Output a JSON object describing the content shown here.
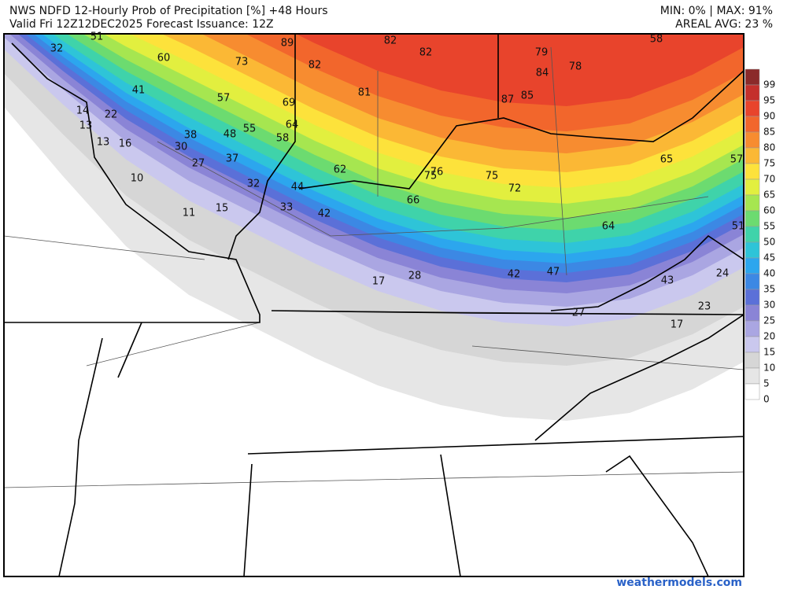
{
  "header": {
    "title": "NWS NDFD 12-Hourly Prob of Precipitation [%] +48 Hours",
    "valid": "Valid Fri 12Z12DEC2025  Forecast Issuance: 12Z",
    "minmax": "MIN: 0% | MAX: 91%",
    "areal": "AREAL AVG: 23 %"
  },
  "map_labels": [
    51,
    32,
    60,
    73,
    89,
    82,
    82,
    82,
    79,
    58,
    84,
    78,
    41,
    57,
    81,
    69,
    87,
    85,
    14,
    22,
    13,
    64,
    55,
    48,
    38,
    58,
    13,
    16,
    30,
    37,
    65,
    57,
    27,
    62,
    76,
    75,
    75,
    10,
    32,
    44,
    72,
    66,
    33,
    15,
    11,
    42,
    64,
    51,
    24,
    42,
    47,
    28,
    17,
    43,
    23,
    27,
    17
  ],
  "colorbar": [
    {
      "label": 99,
      "color": "#8b2a2a"
    },
    {
      "label": 95,
      "color": "#c4302c"
    },
    {
      "label": 90,
      "color": "#e8442c"
    },
    {
      "label": 85,
      "color": "#f2662c"
    },
    {
      "label": 80,
      "color": "#f78c30"
    },
    {
      "label": 75,
      "color": "#fbb835"
    },
    {
      "label": 70,
      "color": "#fde23b"
    },
    {
      "label": 65,
      "color": "#e2ef3f"
    },
    {
      "label": 60,
      "color": "#a6e650"
    },
    {
      "label": 55,
      "color": "#6cdb70"
    },
    {
      "label": 50,
      "color": "#3fd3aa"
    },
    {
      "label": 45,
      "color": "#2ec4d8"
    },
    {
      "label": 40,
      "color": "#2ca6ee"
    },
    {
      "label": 35,
      "color": "#3c88e4"
    },
    {
      "label": 30,
      "color": "#5b70d8"
    },
    {
      "label": 25,
      "color": "#8a84d6"
    },
    {
      "label": 20,
      "color": "#aaa6e2"
    },
    {
      "label": 15,
      "color": "#cac8ee"
    },
    {
      "label": 10,
      "color": "#d6d6d6"
    },
    {
      "label": 5,
      "color": "#e6e6e6"
    },
    {
      "label": 0,
      "color": "#ffffff"
    }
  ],
  "footer": "weathermodels.com"
}
